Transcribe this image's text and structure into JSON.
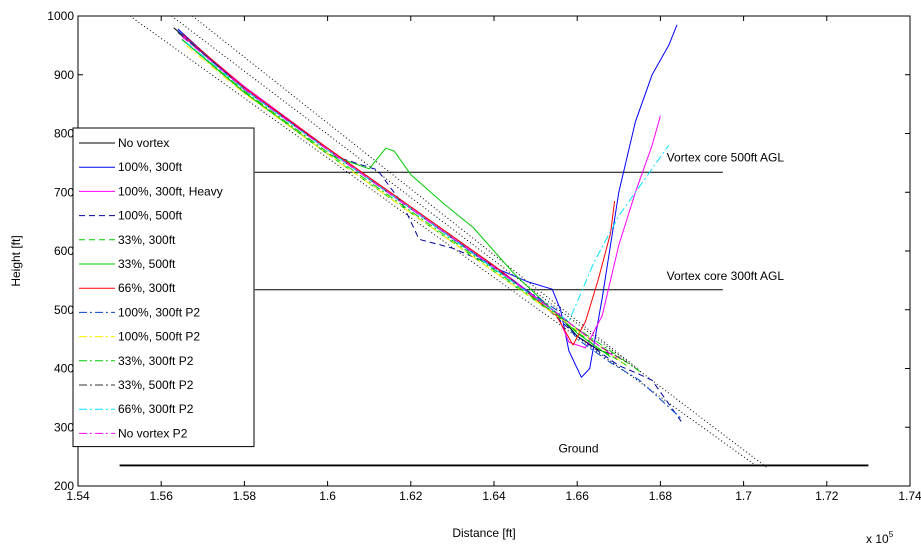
{
  "chart_data": {
    "type": "line",
    "title": "",
    "xlabel": "Distance [ft]",
    "ylabel": "Height [ft]",
    "x_multiplier_label": "x 10",
    "x_multiplier_exponent": "5",
    "xlim": [
      1.54,
      1.74
    ],
    "ylim": [
      200,
      1000
    ],
    "xticks": [
      1.54,
      1.56,
      1.58,
      1.6,
      1.62,
      1.64,
      1.66,
      1.68,
      1.7,
      1.72,
      1.74
    ],
    "xtick_labels": [
      "1.54",
      "1.56",
      "1.58",
      "1.6",
      "1.62",
      "1.64",
      "1.66",
      "1.68",
      "1.7",
      "1.72",
      "1.74"
    ],
    "yticks": [
      200,
      300,
      400,
      500,
      600,
      700,
      800,
      900,
      1000
    ],
    "ytick_labels": [
      "200",
      "300",
      "400",
      "500",
      "600",
      "700",
      "800",
      "900",
      "1000"
    ],
    "grid": false,
    "legend_position": "left",
    "annotations": [
      {
        "text": "Vortex core 500ft AGL",
        "x": 1.6815,
        "y": 752
      },
      {
        "text": "Vortex core 300ft AGL",
        "x": 1.6815,
        "y": 551
      },
      {
        "text": "Ground",
        "x": 1.6555,
        "y": 257
      }
    ],
    "reference_lines": [
      {
        "name": "vortex-core-500",
        "x": [
          1.5825,
          1.695
        ],
        "y": [
          734,
          734
        ],
        "color": "#000000",
        "width": 1
      },
      {
        "name": "vortex-core-300",
        "x": [
          1.5825,
          1.695
        ],
        "y": [
          534,
          534
        ],
        "color": "#000000",
        "width": 1
      },
      {
        "name": "ground",
        "x": [
          1.55,
          1.73
        ],
        "y": [
          235,
          235
        ],
        "color": "#000000",
        "width": 1.8
      }
    ],
    "guide_lines": [
      {
        "x": [
          1.5525,
          1.7035
        ],
        "y": [
          1000,
          232
        ]
      },
      {
        "x": [
          1.5625,
          1.7055
        ],
        "y": [
          1000,
          232
        ]
      },
      {
        "x": [
          1.5675,
          1.6745
        ],
        "y": [
          1000,
          400
        ]
      }
    ],
    "series": [
      {
        "name": "No vortex",
        "color": "#000000",
        "dash": "",
        "x": [
          1.563,
          1.58,
          1.6,
          1.62,
          1.64,
          1.655,
          1.66,
          1.665,
          1.668
        ],
        "y": [
          980,
          875,
          775,
          675,
          575,
          495,
          455,
          432,
          425
        ]
      },
      {
        "name": "100%, 300ft",
        "color": "#0000ff",
        "dash": "",
        "x": [
          1.564,
          1.58,
          1.6,
          1.62,
          1.64,
          1.648,
          1.654,
          1.656,
          1.658,
          1.661,
          1.663,
          1.666,
          1.67,
          1.674,
          1.678,
          1.682,
          1.684
        ],
        "y": [
          978,
          875,
          772,
          672,
          572,
          548,
          535,
          500,
          430,
          385,
          400,
          520,
          700,
          820,
          900,
          950,
          985
        ]
      },
      {
        "name": "100%, 300ft, Heavy",
        "color": "#ff00ff",
        "dash": "",
        "x": [
          1.565,
          1.58,
          1.6,
          1.62,
          1.64,
          1.655,
          1.658,
          1.662,
          1.666,
          1.67,
          1.674,
          1.678,
          1.68
        ],
        "y": [
          968,
          880,
          775,
          675,
          575,
          495,
          445,
          435,
          490,
          610,
          700,
          780,
          830
        ]
      },
      {
        "name": "100%, 500ft",
        "color": "#0000a0",
        "dash": "6,4",
        "x": [
          1.565,
          1.58,
          1.6,
          1.612,
          1.618,
          1.622,
          1.63,
          1.64,
          1.65,
          1.66,
          1.67,
          1.675,
          1.678,
          1.685
        ],
        "y": [
          960,
          870,
          765,
          738,
          680,
          620,
          605,
          575,
          520,
          455,
          405,
          390,
          380,
          310
        ]
      },
      {
        "name": "33%, 300ft",
        "color": "#00cc00",
        "dash": "6,4",
        "x": [
          1.566,
          1.58,
          1.6,
          1.62,
          1.64,
          1.655,
          1.665,
          1.672
        ],
        "y": [
          955,
          870,
          765,
          665,
          565,
          490,
          435,
          405
        ]
      },
      {
        "name": "33%, 500ft",
        "color": "#00cc00",
        "dash": "",
        "x": [
          1.565,
          1.58,
          1.6,
          1.61,
          1.614,
          1.616,
          1.62,
          1.628,
          1.635,
          1.645,
          1.66,
          1.668
        ],
        "y": [
          960,
          870,
          765,
          740,
          775,
          770,
          730,
          680,
          640,
          560,
          460,
          420
        ]
      },
      {
        "name": "66%, 300ft",
        "color": "#ff0000",
        "dash": "",
        "x": [
          1.565,
          1.58,
          1.6,
          1.62,
          1.64,
          1.655,
          1.659,
          1.662,
          1.665,
          1.668,
          1.669
        ],
        "y": [
          970,
          878,
          775,
          675,
          575,
          490,
          440,
          480,
          550,
          630,
          685
        ]
      },
      {
        "name": "100%, 300ft P2",
        "color": "#0044cc",
        "dash": "8,3,2,3",
        "x": [
          1.564,
          1.58,
          1.6,
          1.62,
          1.64,
          1.655,
          1.66,
          1.668,
          1.675,
          1.685
        ],
        "y": [
          975,
          875,
          772,
          672,
          570,
          500,
          450,
          410,
          380,
          315
        ]
      },
      {
        "name": "100%, 500ft P2",
        "color": "#ffee00",
        "dash": "8,3,2,3",
        "x": [
          1.566,
          1.58,
          1.6,
          1.62,
          1.64,
          1.655,
          1.665,
          1.672
        ],
        "y": [
          950,
          868,
          765,
          665,
          565,
          490,
          440,
          405
        ]
      },
      {
        "name": "33%, 300ft P2",
        "color": "#00cc00",
        "dash": "8,3,2,3",
        "x": [
          1.565,
          1.58,
          1.6,
          1.62,
          1.64,
          1.655,
          1.668,
          1.675
        ],
        "y": [
          960,
          872,
          768,
          668,
          568,
          492,
          430,
          395
        ]
      },
      {
        "name": "33%, 500ft P2",
        "color": "#333333",
        "dash": "8,3,2,3",
        "x": [
          1.564,
          1.58,
          1.6,
          1.62,
          1.64,
          1.655,
          1.665,
          1.672
        ],
        "y": [
          972,
          876,
          772,
          672,
          572,
          495,
          440,
          410
        ]
      },
      {
        "name": "66%, 300ft P2",
        "color": "#00e5ff",
        "dash": "8,3,2,3",
        "x": [
          1.566,
          1.58,
          1.6,
          1.62,
          1.64,
          1.654,
          1.658,
          1.664,
          1.67,
          1.676,
          1.682
        ],
        "y": [
          955,
          875,
          772,
          672,
          570,
          500,
          480,
          580,
          660,
          720,
          780
        ]
      },
      {
        "name": "No vortex P2",
        "color": "#ff00ff",
        "dash": "8,3,2,3",
        "x": [
          1.565,
          1.58,
          1.6,
          1.62,
          1.64,
          1.655,
          1.665,
          1.67
        ],
        "y": [
          965,
          876,
          772,
          672,
          572,
          495,
          440,
          415
        ]
      }
    ]
  }
}
